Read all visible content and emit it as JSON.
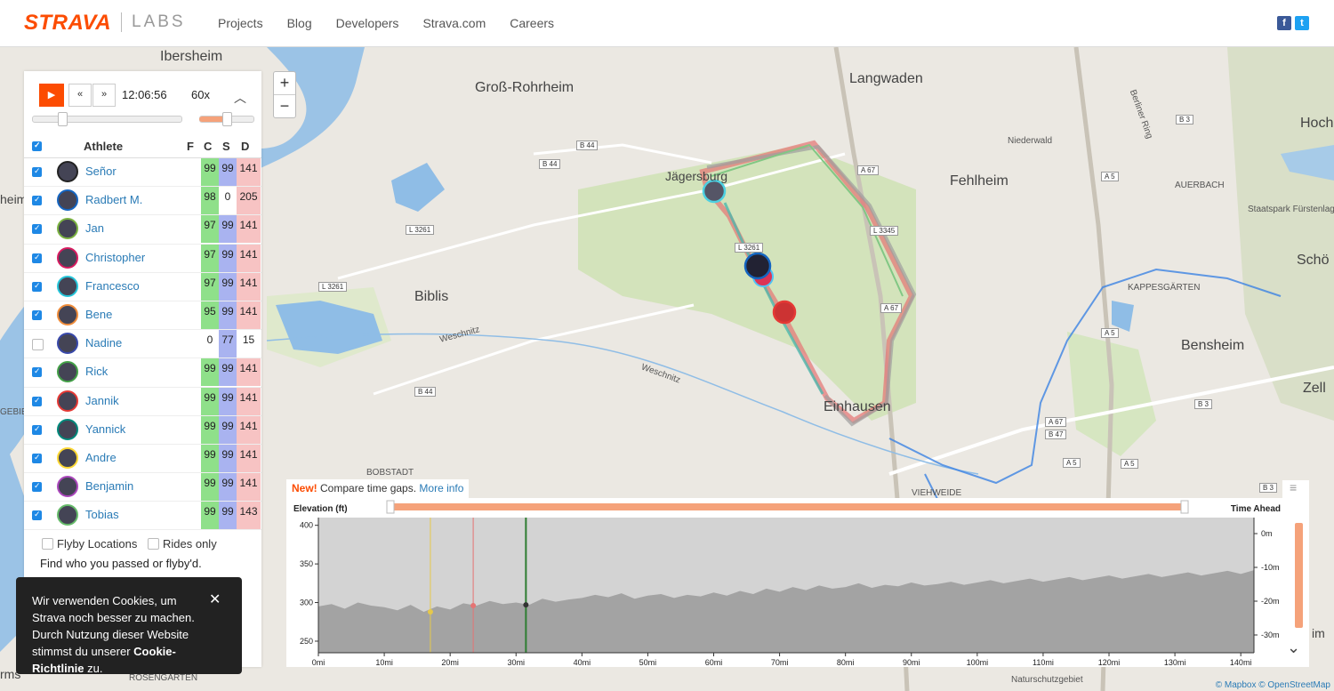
{
  "nav": {
    "logo": "STRAVA",
    "logo_suffix": "LABS",
    "links": [
      "Projects",
      "Blog",
      "Developers",
      "Strava.com",
      "Careers"
    ],
    "social": [
      "f",
      "t"
    ]
  },
  "map": {
    "labels": {
      "ibersheim": "Ibersheim",
      "gross_rohrheim": "Groß-Rohrheim",
      "langwaden": "Langwaden",
      "jaegersburg": "Jägersburg",
      "fehlheim": "Fehlheim",
      "biblis": "Biblis",
      "einhausen": "Einhausen",
      "bensheim": "Bensheim",
      "niederwald": "Niederwald",
      "auerbach": "AUERBACH",
      "staatspark": "Staatspark Fürstenlag",
      "kappesgaerten": "KAPPESGÄRTEN",
      "bobstadt": "BOBSTADT",
      "viehweide": "VIEHWEIDE",
      "weschnitz1": "Weschnitz",
      "weschnitz2": "Weschnitz",
      "hoch": "Hoch",
      "schoe": "Schö",
      "zell": "Zell",
      "rosengarten": "ROSENGARTEN",
      "naturschutz": "Naturschutzgebiet",
      "berliner_ring": "Berliner Ring",
      "heim_left": "heim",
      "gebiet_left": "GEBIET",
      "ms_left": "rms",
      "im_right": "im"
    },
    "roads": [
      "B 44",
      "B 44",
      "L 3261",
      "L 3261",
      "B 44",
      "A 67",
      "L 3261",
      "A 67",
      "A 67",
      "L 3345",
      "B 3",
      "A 5",
      "A 5",
      "A 5",
      "B 3",
      "B 47",
      "A 5",
      "B 3"
    ],
    "zoom_in": "+",
    "zoom_out": "−"
  },
  "playback": {
    "play_icon": "▶",
    "back_label": "«",
    "forward_label": "»",
    "time": "12:06:56",
    "speed": "60x",
    "collapse_icon": "︿",
    "time_progress": 0.2,
    "speed_progress": 0.5
  },
  "table": {
    "headers": {
      "athlete": "Athlete",
      "f": "F",
      "c": "C",
      "s": "S",
      "d": "D"
    },
    "rows": [
      {
        "name": "Señor",
        "checked": true,
        "f": "",
        "c": "99",
        "s": "99",
        "d": "141",
        "ring": "#222222"
      },
      {
        "name": "Radbert M.",
        "checked": true,
        "f": "",
        "c": "98",
        "s": "0",
        "d": "205",
        "ring": "#1565c0"
      },
      {
        "name": "Jan",
        "checked": true,
        "f": "",
        "c": "97",
        "s": "99",
        "d": "141",
        "ring": "#7cb342"
      },
      {
        "name": "Christopher",
        "checked": true,
        "f": "",
        "c": "97",
        "s": "99",
        "d": "141",
        "ring": "#d81b60"
      },
      {
        "name": "Francesco",
        "checked": true,
        "f": "",
        "c": "97",
        "s": "99",
        "d": "141",
        "ring": "#26c6da"
      },
      {
        "name": "Bene",
        "checked": true,
        "f": "",
        "c": "95",
        "s": "99",
        "d": "141",
        "ring": "#ef8c3a"
      },
      {
        "name": "Nadine",
        "checked": false,
        "f": "",
        "c": "0",
        "s": "77",
        "d": "15",
        "ring": "#3949ab"
      },
      {
        "name": "Rick",
        "checked": true,
        "f": "",
        "c": "99",
        "s": "99",
        "d": "141",
        "ring": "#43a047"
      },
      {
        "name": "Jannik",
        "checked": true,
        "f": "",
        "c": "99",
        "s": "99",
        "d": "141",
        "ring": "#e53935"
      },
      {
        "name": "Yannick",
        "checked": true,
        "f": "",
        "c": "99",
        "s": "99",
        "d": "141",
        "ring": "#00897b"
      },
      {
        "name": "Andre",
        "checked": true,
        "f": "",
        "c": "99",
        "s": "99",
        "d": "141",
        "ring": "#fdd835"
      },
      {
        "name": "Benjamin",
        "checked": true,
        "f": "",
        "c": "99",
        "s": "99",
        "d": "141",
        "ring": "#ab47bc"
      },
      {
        "name": "Tobias",
        "checked": true,
        "f": "",
        "c": "99",
        "s": "99",
        "d": "143",
        "ring": "#66bb6a"
      }
    ]
  },
  "options": {
    "flyby": "Flyby Locations",
    "rides_only": "Rides only",
    "find_text": "Find who you passed or flyby'd."
  },
  "cookie": {
    "text": "Wir verwenden Cookies, um Strava noch besser zu machen. Durch Nutzung dieser Website stimmst du unserer",
    "link": "Cookie-Richtlinie",
    "suffix": "zu.",
    "close": "✕"
  },
  "banner": {
    "new": "New!",
    "text": "Compare time gaps.",
    "more": "More info"
  },
  "chart": {
    "elevation_label": "Elevation (ft)",
    "time_ahead_label": "Time Ahead",
    "menu_icon": "≡",
    "expand_icon": "⌄",
    "attribution_prefix": "©",
    "attribution": "Mapbox © OpenStreetMap"
  },
  "chart_data": {
    "type": "area",
    "title": "",
    "xlabel": "",
    "ylabel": "Elevation (ft)",
    "y2label": "Time Ahead",
    "xlim": [
      0,
      142
    ],
    "ylim": [
      235,
      410
    ],
    "x_ticks": [
      "0mi",
      "10mi",
      "20mi",
      "30mi",
      "40mi",
      "50mi",
      "60mi",
      "70mi",
      "80mi",
      "90mi",
      "100mi",
      "110mi",
      "120mi",
      "130mi",
      "140mi"
    ],
    "x_tick_values": [
      0,
      10,
      20,
      30,
      40,
      50,
      60,
      70,
      80,
      90,
      100,
      110,
      120,
      130,
      140
    ],
    "y_ticks": [
      "400",
      "350",
      "300",
      "250"
    ],
    "y_tick_values": [
      400,
      350,
      300,
      250
    ],
    "y2_ticks": [
      "0m",
      "-10m",
      "-20m",
      "-30m"
    ],
    "markers": [
      {
        "name": "yellow",
        "x": 17,
        "color": "#e6c84a"
      },
      {
        "name": "red",
        "x": 23.5,
        "color": "#e57373"
      },
      {
        "name": "current",
        "x": 31.5,
        "color": "#2e7d32"
      }
    ],
    "elevation": {
      "x": [
        0,
        2,
        4,
        6,
        8,
        10,
        12,
        14,
        16,
        18,
        20,
        22,
        24,
        26,
        28,
        30,
        32,
        34,
        36,
        38,
        40,
        42,
        44,
        46,
        48,
        50,
        52,
        54,
        56,
        58,
        60,
        62,
        64,
        66,
        68,
        70,
        72,
        74,
        76,
        78,
        80,
        82,
        84,
        86,
        88,
        90,
        92,
        94,
        96,
        98,
        100,
        102,
        104,
        106,
        108,
        110,
        112,
        114,
        116,
        118,
        120,
        122,
        124,
        126,
        128,
        130,
        132,
        134,
        136,
        138,
        140,
        142
      ],
      "y": [
        295,
        298,
        292,
        300,
        296,
        294,
        290,
        297,
        288,
        295,
        291,
        299,
        296,
        302,
        298,
        300,
        297,
        305,
        301,
        304,
        306,
        310,
        307,
        312,
        305,
        309,
        311,
        306,
        310,
        308,
        313,
        309,
        315,
        311,
        318,
        314,
        320,
        316,
        322,
        318,
        320,
        325,
        319,
        323,
        321,
        326,
        322,
        324,
        327,
        323,
        326,
        329,
        325,
        328,
        331,
        327,
        330,
        333,
        329,
        332,
        335,
        331,
        334,
        337,
        333,
        336,
        339,
        335,
        338,
        341,
        337,
        342
      ]
    }
  }
}
